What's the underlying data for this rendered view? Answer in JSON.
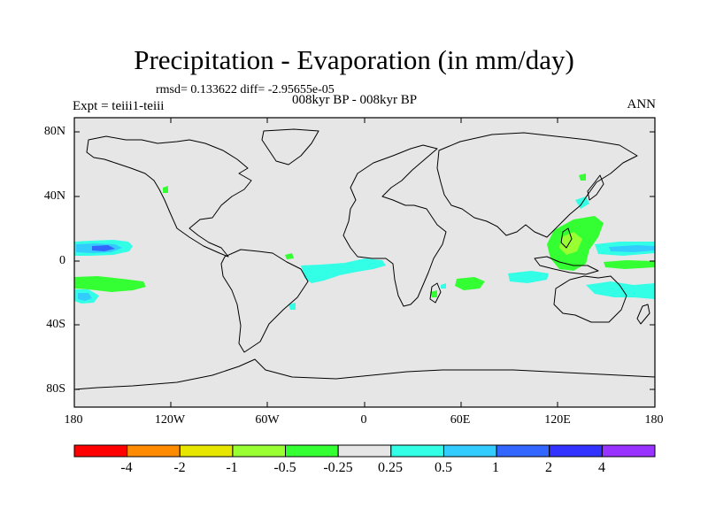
{
  "title": "Precipitation - Evaporation (in mm/day)",
  "stats": "rmsd= 0.133622 diff= -2.95655e-05",
  "period": "008kyr BP - 008kyr BP",
  "expt": "Expt = teiii1-teiii",
  "season": "ANN",
  "y_ticks": [
    "80N",
    "40N",
    "0",
    "40S",
    "80S"
  ],
  "x_ticks": [
    "180",
    "120W",
    "60W",
    "0",
    "60E",
    "120E",
    "180"
  ],
  "colorbar": {
    "labels": [
      "-4",
      "-2",
      "-1",
      "-0.5",
      "-0.25",
      "0.25",
      "0.5",
      "1",
      "2",
      "4"
    ],
    "colors": [
      "#ff0000",
      "#ff8c00",
      "#e6e600",
      "#99ff33",
      "#33ff33",
      "#e6e6e6",
      "#33ffe6",
      "#33ccff",
      "#3366ff",
      "#3333ff",
      "#9933ff"
    ]
  },
  "map_colors": {
    "background": "#e6e6e6",
    "coast": "#000000",
    "green": "#33ff33",
    "lightgreen": "#99ff33",
    "cyan": "#33ffe6",
    "lightblue": "#33ccff",
    "blue": "#3366ff"
  }
}
